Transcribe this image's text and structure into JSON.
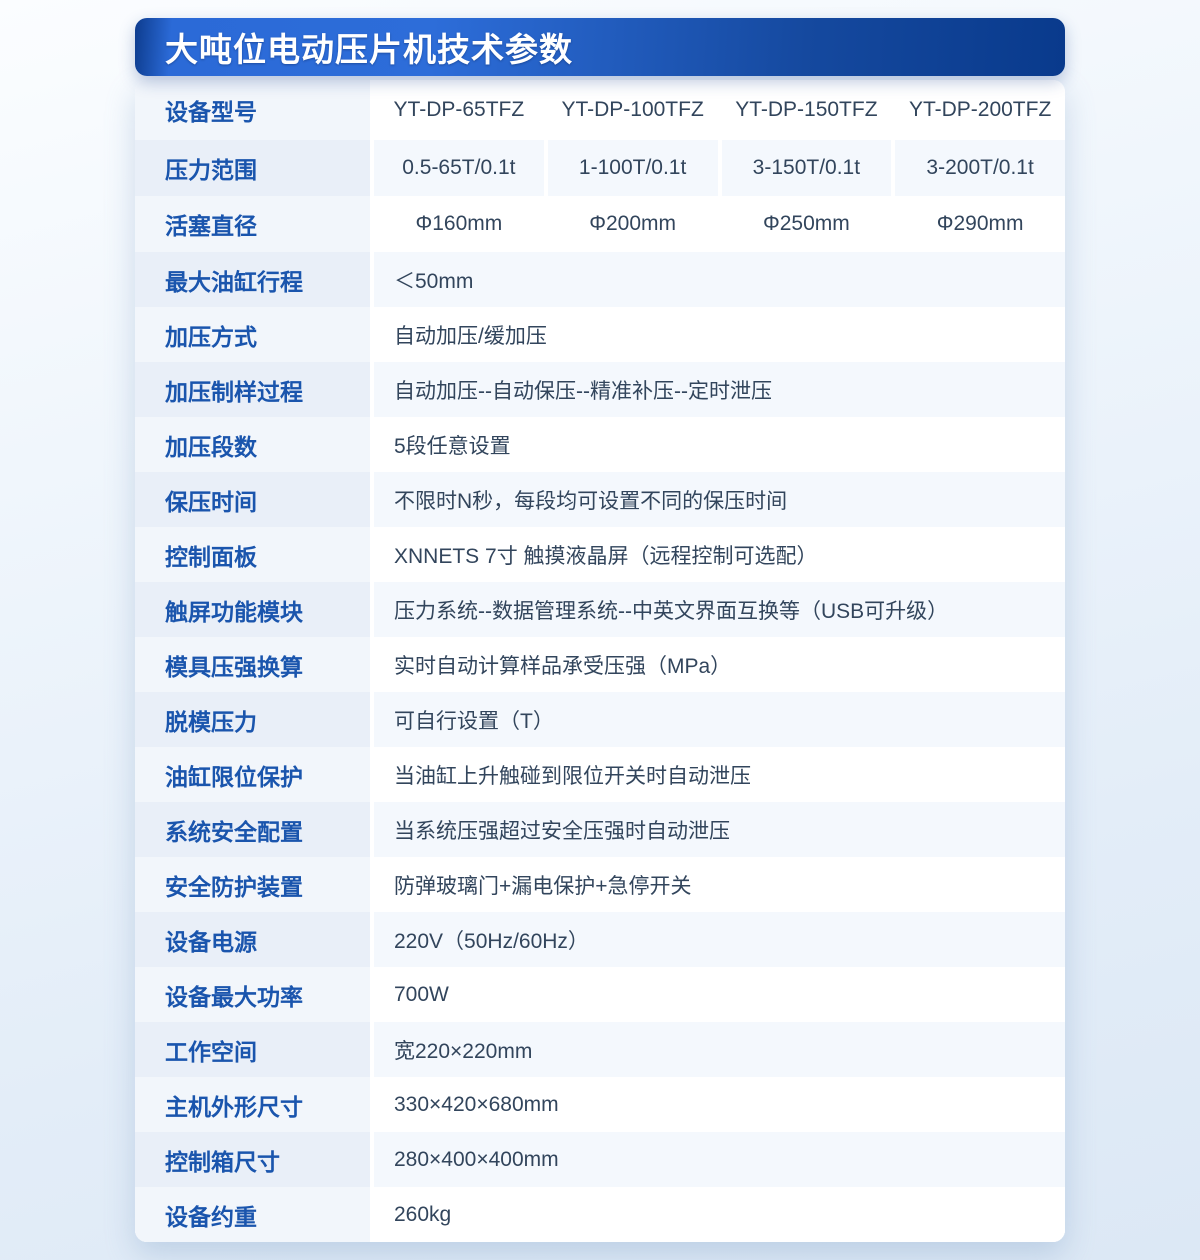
{
  "title": "大吨位电动压片机技术参数",
  "colors": {
    "banner_blue_bright": "#2d6dd9",
    "banner_blue_dark": "#093a8c",
    "label_text_blue": "#1a55ad",
    "value_text": "#32455c",
    "stripe_value_bg": "#f4f8fd",
    "stripe_label_bg": "#e9eff8",
    "label_bg": "#f2f6fb",
    "page_bg_bottom": "#dce8f5"
  },
  "table": {
    "rows": [
      {
        "label": "设备型号",
        "values": [
          "YT-DP-65TFZ",
          "YT-DP-100TFZ",
          "YT-DP-150TFZ",
          "YT-DP-200TFZ"
        ]
      },
      {
        "label": "压力范围",
        "values": [
          "0.5-65T/0.1t",
          "1-100T/0.1t",
          "3-150T/0.1t",
          "3-200T/0.1t"
        ]
      },
      {
        "label": "活塞直径",
        "values": [
          "Φ160mm",
          "Φ200mm",
          "Φ250mm",
          "Φ290mm"
        ]
      },
      {
        "label": "最大油缸行程",
        "value": "＜50mm"
      },
      {
        "label": "加压方式",
        "value": "自动加压/缓加压"
      },
      {
        "label": "加压制样过程",
        "value": "自动加压--自动保压--精准补压--定时泄压"
      },
      {
        "label": "加压段数",
        "value": "5段任意设置"
      },
      {
        "label": "保压时间",
        "value": "不限时N秒，每段均可设置不同的保压时间"
      },
      {
        "label": "控制面板",
        "value": "XNNETS 7寸 触摸液晶屏（远程控制可选配）"
      },
      {
        "label": "触屏功能模块",
        "value": "压力系统--数据管理系统--中英文界面互换等（USB可升级）"
      },
      {
        "label": "模具压强换算",
        "value": "实时自动计算样品承受压强（MPa）"
      },
      {
        "label": "脱模压力",
        "value": "可自行设置（T）"
      },
      {
        "label": "油缸限位保护",
        "value": "当油缸上升触碰到限位开关时自动泄压"
      },
      {
        "label": "系统安全配置",
        "value": "当系统压强超过安全压强时自动泄压"
      },
      {
        "label": "安全防护装置",
        "value": "防弹玻璃门+漏电保护+急停开关"
      },
      {
        "label": "设备电源",
        "value": "220V（50Hz/60Hz）"
      },
      {
        "label": "设备最大功率",
        "value": "700W"
      },
      {
        "label": "工作空间",
        "value": "宽220×220mm"
      },
      {
        "label": "主机外形尺寸",
        "value": "330×420×680mm"
      },
      {
        "label": "控制箱尺寸",
        "value": "280×400×400mm"
      },
      {
        "label": "设备约重",
        "value": "260kg"
      }
    ]
  }
}
